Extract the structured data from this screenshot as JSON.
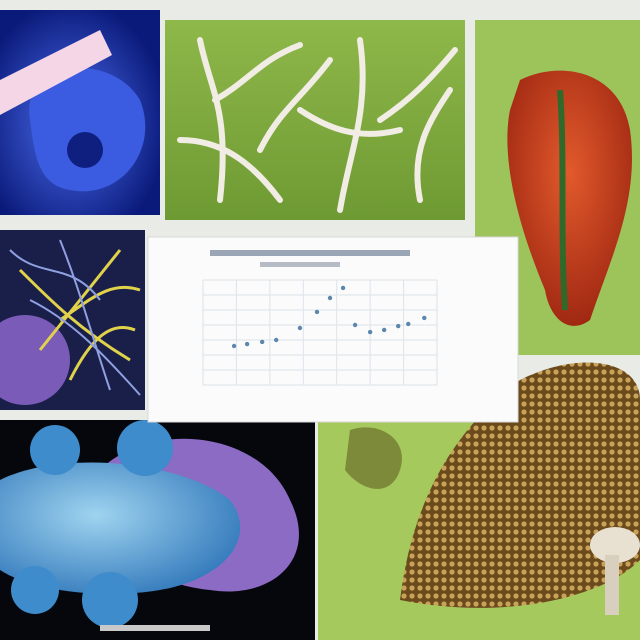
{
  "chart_data": {
    "type": "scatter",
    "x": [
      0.93,
      1.32,
      1.77,
      2.19,
      2.9,
      3.41,
      3.8,
      4.19,
      4.55,
      5.0,
      5.42,
      5.84,
      6.14,
      6.62
    ],
    "values": [
      2.6,
      2.73,
      2.87,
      3.0,
      3.8,
      4.87,
      5.8,
      6.47,
      4.0,
      3.53,
      3.67,
      3.93,
      4.07,
      4.47
    ],
    "color": "#5b86ad",
    "xlim": [
      0,
      7
    ],
    "ylim": [
      0,
      7
    ],
    "xticks": [
      0,
      1,
      2,
      3,
      4,
      5,
      6,
      7
    ],
    "yticks": [
      0,
      1,
      2,
      3,
      4,
      5,
      6,
      7
    ],
    "grid": true
  }
}
